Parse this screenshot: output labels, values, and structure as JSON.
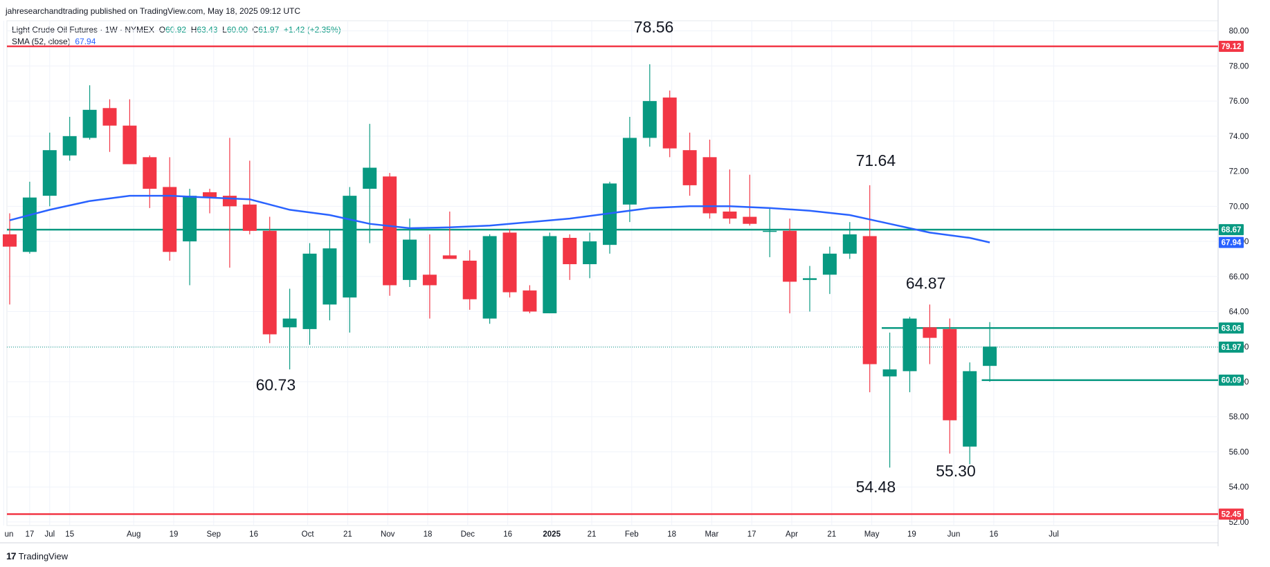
{
  "header": {
    "publisher": "jahresearchandtrading published on TradingView.com, May 18, 2025 09:12 UTC"
  },
  "legend": {
    "symbol": "Light Crude Oil Futures · 1W · NYMEX",
    "o_label": "O",
    "o_value": "60.92",
    "h_label": "H",
    "h_value": "63.43",
    "l_label": "L",
    "l_value": "60.00",
    "c_label": "C",
    "c_value": "61.97",
    "change": "+1.42 (+2.35%)",
    "sma_label": "SMA (52, close)",
    "sma_value": "67.94"
  },
  "footer": {
    "brand": "TradingView"
  },
  "chart_data": {
    "type": "candlestick",
    "colors": {
      "up": "#089981",
      "down": "#f23645",
      "sma": "#2962ff",
      "red_level": "#f23645",
      "green_level": "#089981"
    },
    "ylim": [
      51.8,
      80.5
    ],
    "y_ticks": [
      "52.00",
      "54.00",
      "56.00",
      "58.00",
      "60.00",
      "62.00",
      "64.00",
      "66.00",
      "68.00",
      "70.00",
      "72.00",
      "74.00",
      "76.00",
      "78.00",
      "80.00"
    ],
    "x_ticks": [
      {
        "label": "un",
        "i": -0.3
      },
      {
        "label": "17",
        "i": 1
      },
      {
        "label": "Jul",
        "i": 2
      },
      {
        "label": "15",
        "i": 3
      },
      {
        "label": "Aug",
        "i": 6.2
      },
      {
        "label": "19",
        "i": 8.2
      },
      {
        "label": "Sep",
        "i": 10.2
      },
      {
        "label": "16",
        "i": 12.2
      },
      {
        "label": "Oct",
        "i": 14.9
      },
      {
        "label": "21",
        "i": 16.9
      },
      {
        "label": "Nov",
        "i": 18.9
      },
      {
        "label": "18",
        "i": 20.9
      },
      {
        "label": "Dec",
        "i": 22.9
      },
      {
        "label": "16",
        "i": 24.9
      },
      {
        "label": "2025",
        "i": 27.1,
        "bold": true
      },
      {
        "label": "21",
        "i": 29.1
      },
      {
        "label": "Feb",
        "i": 31.1
      },
      {
        "label": "18",
        "i": 33.1
      },
      {
        "label": "Mar",
        "i": 35.1
      },
      {
        "label": "17",
        "i": 37.1
      },
      {
        "label": "Apr",
        "i": 39.1
      },
      {
        "label": "21",
        "i": 41.1
      },
      {
        "label": "May",
        "i": 43.1
      },
      {
        "label": "19",
        "i": 45.1
      },
      {
        "label": "Jun",
        "i": 47.2
      },
      {
        "label": "16",
        "i": 49.2
      },
      {
        "label": "Jul",
        "i": 52.2
      }
    ],
    "candles": [
      {
        "o": 68.4,
        "h": 69.6,
        "l": 64.4,
        "c": 67.7
      },
      {
        "o": 67.4,
        "h": 71.4,
        "l": 67.3,
        "c": 70.5
      },
      {
        "o": 70.6,
        "h": 74.2,
        "l": 70.0,
        "c": 73.2
      },
      {
        "o": 72.9,
        "h": 75.1,
        "l": 72.6,
        "c": 74.0
      },
      {
        "o": 73.9,
        "h": 76.9,
        "l": 73.8,
        "c": 75.5
      },
      {
        "o": 75.6,
        "h": 76.1,
        "l": 73.1,
        "c": 74.6
      },
      {
        "o": 74.6,
        "h": 76.1,
        "l": 72.4,
        "c": 72.4
      },
      {
        "o": 72.8,
        "h": 72.9,
        "l": 69.9,
        "c": 71.0
      },
      {
        "o": 71.1,
        "h": 72.8,
        "l": 66.9,
        "c": 67.4
      },
      {
        "o": 68.0,
        "h": 71.0,
        "l": 65.5,
        "c": 70.6
      },
      {
        "o": 70.8,
        "h": 71.0,
        "l": 69.6,
        "c": 70.5
      },
      {
        "o": 70.6,
        "h": 73.9,
        "l": 66.5,
        "c": 70.0
      },
      {
        "o": 70.1,
        "h": 72.6,
        "l": 68.4,
        "c": 68.6
      },
      {
        "o": 68.6,
        "h": 69.4,
        "l": 62.2,
        "c": 62.7
      },
      {
        "o": 63.1,
        "h": 65.3,
        "l": 60.7,
        "c": 63.6
      },
      {
        "o": 63.0,
        "h": 67.9,
        "l": 62.1,
        "c": 67.3
      },
      {
        "o": 64.4,
        "h": 68.7,
        "l": 63.5,
        "c": 67.6
      },
      {
        "o": 64.8,
        "h": 71.1,
        "l": 62.8,
        "c": 70.6
      },
      {
        "o": 71.0,
        "h": 74.7,
        "l": 67.9,
        "c": 72.2
      },
      {
        "o": 71.7,
        "h": 71.9,
        "l": 64.9,
        "c": 65.5
      },
      {
        "o": 65.8,
        "h": 69.3,
        "l": 65.4,
        "c": 68.1
      },
      {
        "o": 66.1,
        "h": 68.4,
        "l": 63.6,
        "c": 65.5
      },
      {
        "o": 67.2,
        "h": 69.7,
        "l": 67.1,
        "c": 67.0
      },
      {
        "o": 66.9,
        "h": 67.5,
        "l": 64.1,
        "c": 64.7
      },
      {
        "o": 63.6,
        "h": 68.4,
        "l": 63.3,
        "c": 68.3
      },
      {
        "o": 68.5,
        "h": 68.7,
        "l": 64.8,
        "c": 65.1
      },
      {
        "o": 65.2,
        "h": 65.5,
        "l": 63.9,
        "c": 64.0
      },
      {
        "o": 63.9,
        "h": 68.5,
        "l": 63.9,
        "c": 68.3
      },
      {
        "o": 68.2,
        "h": 68.4,
        "l": 65.8,
        "c": 66.7
      },
      {
        "o": 66.7,
        "h": 68.5,
        "l": 65.9,
        "c": 68.0
      },
      {
        "o": 67.8,
        "h": 71.4,
        "l": 67.3,
        "c": 71.3
      },
      {
        "o": 70.1,
        "h": 75.1,
        "l": 69.1,
        "c": 73.9
      },
      {
        "o": 73.9,
        "h": 78.1,
        "l": 73.4,
        "c": 76.0
      },
      {
        "o": 76.2,
        "h": 76.6,
        "l": 72.8,
        "c": 73.3
      },
      {
        "o": 73.2,
        "h": 74.2,
        "l": 70.6,
        "c": 71.2
      },
      {
        "o": 72.8,
        "h": 73.8,
        "l": 69.3,
        "c": 69.6
      },
      {
        "o": 69.7,
        "h": 72.1,
        "l": 69.0,
        "c": 69.3
      },
      {
        "o": 69.4,
        "h": 71.8,
        "l": 68.9,
        "c": 69.0
      },
      {
        "o": 68.6,
        "h": 69.9,
        "l": 67.1,
        "c": 68.6
      },
      {
        "o": 68.6,
        "h": 69.3,
        "l": 63.9,
        "c": 65.7
      },
      {
        "o": 65.8,
        "h": 66.6,
        "l": 64.0,
        "c": 65.9
      },
      {
        "o": 66.1,
        "h": 67.7,
        "l": 65.0,
        "c": 67.3
      },
      {
        "o": 67.3,
        "h": 69.1,
        "l": 67.0,
        "c": 68.4
      },
      {
        "o": 68.3,
        "h": 71.2,
        "l": 59.4,
        "c": 61.0
      },
      {
        "o": 60.3,
        "h": 62.8,
        "l": 55.1,
        "c": 60.7
      },
      {
        "o": 60.6,
        "h": 63.7,
        "l": 59.4,
        "c": 63.6
      },
      {
        "o": 63.1,
        "h": 64.4,
        "l": 61.0,
        "c": 62.5
      },
      {
        "o": 63.0,
        "h": 63.6,
        "l": 55.9,
        "c": 57.8
      },
      {
        "o": 56.3,
        "h": 61.1,
        "l": 55.3,
        "c": 60.6
      },
      {
        "o": 60.9,
        "h": 63.4,
        "l": 60.0,
        "c": 62.0
      }
    ],
    "sma": [
      {
        "i": 0,
        "v": 69.2
      },
      {
        "i": 2,
        "v": 69.8
      },
      {
        "i": 4,
        "v": 70.3
      },
      {
        "i": 6,
        "v": 70.6
      },
      {
        "i": 8,
        "v": 70.6
      },
      {
        "i": 10,
        "v": 70.5
      },
      {
        "i": 12,
        "v": 70.4
      },
      {
        "i": 14,
        "v": 69.8
      },
      {
        "i": 16,
        "v": 69.5
      },
      {
        "i": 18,
        "v": 69.0
      },
      {
        "i": 20,
        "v": 68.75
      },
      {
        "i": 22,
        "v": 68.8
      },
      {
        "i": 24,
        "v": 68.9
      },
      {
        "i": 26,
        "v": 69.1
      },
      {
        "i": 28,
        "v": 69.3
      },
      {
        "i": 30,
        "v": 69.6
      },
      {
        "i": 32,
        "v": 69.9
      },
      {
        "i": 34,
        "v": 70.0
      },
      {
        "i": 36,
        "v": 70.0
      },
      {
        "i": 38,
        "v": 69.9
      },
      {
        "i": 40,
        "v": 69.75
      },
      {
        "i": 42,
        "v": 69.5
      },
      {
        "i": 44,
        "v": 69.0
      },
      {
        "i": 46,
        "v": 68.5
      },
      {
        "i": 48,
        "v": 68.2
      },
      {
        "i": 49,
        "v": 67.94
      }
    ],
    "horizontal_lines": [
      {
        "price": 79.12,
        "color": "#f23645",
        "label": "79.12",
        "from_i": -1
      },
      {
        "price": 68.67,
        "color": "#089981",
        "label": "68.67",
        "from_i": -1
      },
      {
        "price": 63.06,
        "color": "#089981",
        "label": "63.06",
        "from_i": 43.6
      },
      {
        "price": 60.09,
        "color": "#089981",
        "label": "60.09",
        "from_i": 48.6
      },
      {
        "price": 52.45,
        "color": "#f23645",
        "label": "52.45",
        "from_i": -1
      }
    ],
    "price_tags": [
      {
        "price": 67.94,
        "color": "#2962ff",
        "label": "67.94"
      },
      {
        "price": 61.97,
        "color": "#089981",
        "label": "61.97"
      }
    ],
    "current_price": 61.97,
    "annotations": [
      {
        "text": "78.56",
        "i": 32.2,
        "price": 79.9
      },
      {
        "text": "71.64",
        "i": 43.3,
        "price": 72.3
      },
      {
        "text": "64.87",
        "i": 45.8,
        "price": 65.3
      },
      {
        "text": "60.73",
        "i": 13.3,
        "price": 59.5
      },
      {
        "text": "54.48",
        "i": 43.3,
        "price": 53.7
      },
      {
        "text": "55.30",
        "i": 47.3,
        "price": 54.6
      }
    ]
  }
}
